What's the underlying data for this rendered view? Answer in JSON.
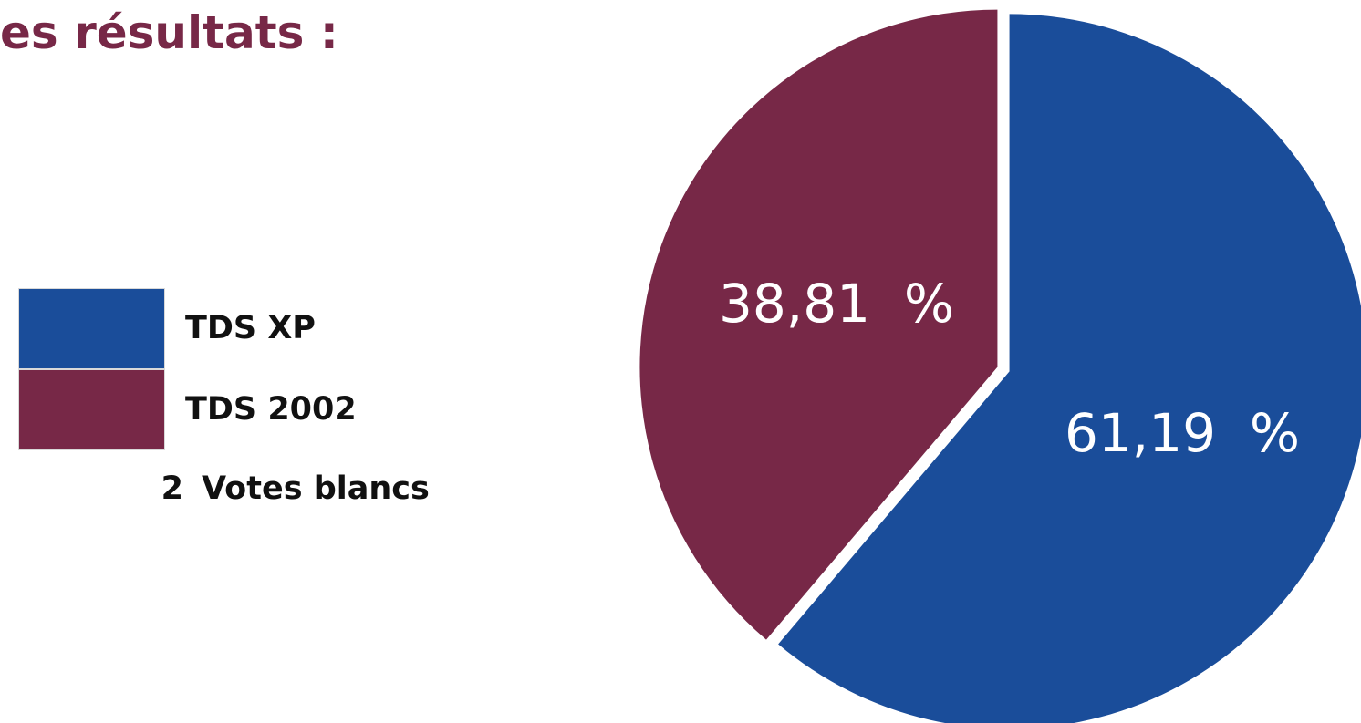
{
  "page": {
    "title": "es résultats :"
  },
  "legend": {
    "items": [
      {
        "label": "TDS XP",
        "color": "#1a4d9a"
      },
      {
        "label": "TDS 2002",
        "color": "#772847"
      }
    ],
    "blank_votes": {
      "count": "2",
      "label": "Votes blancs"
    }
  },
  "chart_data": {
    "type": "pie",
    "title": "",
    "slices": [
      {
        "name": "TDS XP",
        "value": 61.19,
        "label": "61,19  %",
        "color": "#1a4d9a"
      },
      {
        "name": "TDS 2002",
        "value": 38.81,
        "label": "38,81  %",
        "color": "#772847"
      }
    ],
    "start": "top, clockwise",
    "legend_position": "left"
  }
}
